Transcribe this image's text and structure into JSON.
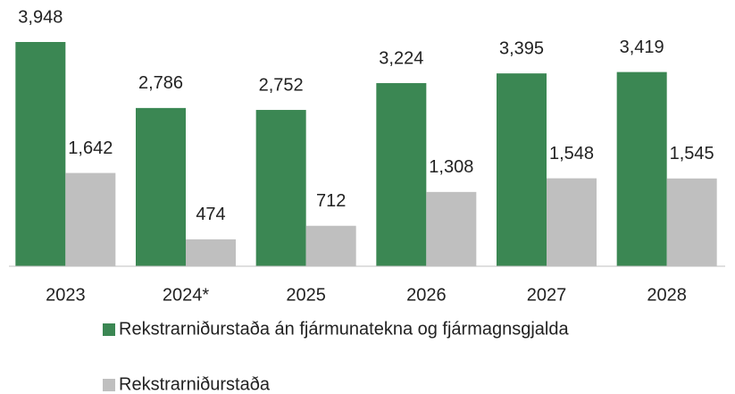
{
  "chart_data": {
    "type": "bar",
    "categories": [
      "2023",
      "2024*",
      "2025",
      "2026",
      "2027",
      "2028"
    ],
    "series": [
      {
        "name": "Rekstrarniðurstaða án fjármunatekna og fjármagnsgjalda",
        "color": "#3b8753",
        "values": [
          3948,
          2786,
          2752,
          3224,
          3395,
          3419
        ],
        "value_labels": [
          "3,948",
          "2,786",
          "2,752",
          "3,224",
          "3,395",
          "3,419"
        ]
      },
      {
        "name": "Rekstrarniðurstaða",
        "color": "#bfbfbf",
        "values": [
          1642,
          474,
          712,
          1308,
          1548,
          1545
        ],
        "value_labels": [
          "1,642",
          "474",
          "712",
          "1,308",
          "1,548",
          "1,545"
        ]
      }
    ]
  }
}
